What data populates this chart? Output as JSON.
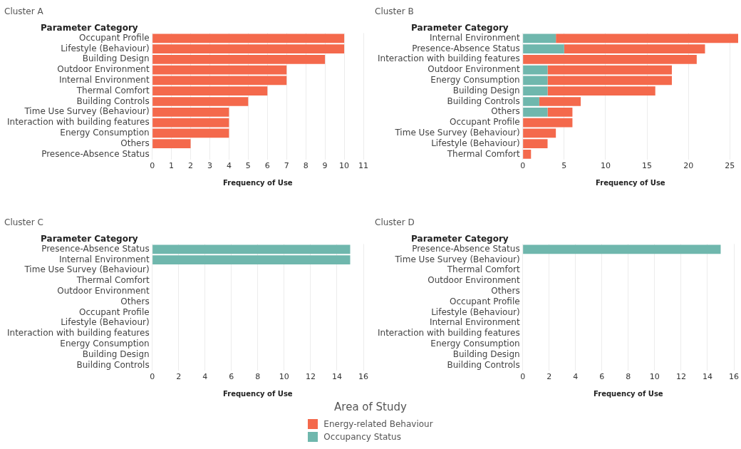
{
  "chart_data": [
    {
      "type": "bar",
      "title": "Cluster A",
      "ylabel": "Parameter Category",
      "xlabel": "Frequency of Use",
      "orientation": "horizontal",
      "stacked": true,
      "grid": "x",
      "categories": [
        "Occupant Profile",
        "Lifestyle (Behaviour)",
        "Building Design",
        "Outdoor Environment",
        "Internal Environment",
        "Thermal Comfort",
        "Building Controls",
        "Time Use Survey (Behaviour)",
        "Interaction with building features",
        "Energy Consumption",
        "Others",
        "Presence-Absence Status"
      ],
      "series": [
        {
          "name": "Energy-related Behaviour",
          "color": "#f4694c",
          "values": [
            10,
            10,
            9,
            7,
            7,
            6,
            5,
            4,
            4,
            4,
            2,
            0
          ]
        }
      ],
      "xlim": [
        0,
        11
      ],
      "xticks": [
        0,
        1,
        2,
        3,
        4,
        5,
        6,
        7,
        8,
        9,
        10,
        11
      ]
    },
    {
      "type": "bar",
      "title": "Cluster B",
      "ylabel": "Parameter Category",
      "xlabel": "Frequency of Use",
      "orientation": "horizontal",
      "stacked": true,
      "grid": "x",
      "legend": "bottom",
      "legend_title": "Area of Study",
      "categories": [
        "Internal Environment",
        "Presence-Absence Status",
        "Interaction with building features",
        "Outdoor Environment",
        "Energy Consumption",
        "Building Design",
        "Building Controls",
        "Others",
        "Occupant Profile",
        "Time Use Survey (Behaviour)",
        "Lifestyle (Behaviour)",
        "Thermal Comfort"
      ],
      "series": [
        {
          "name": "Occupancy Status",
          "color": "#6fb7ad",
          "values": [
            4,
            5,
            0,
            3,
            3,
            3,
            2,
            3,
            0,
            0,
            0,
            0
          ]
        },
        {
          "name": "Energy-related Behaviour",
          "color": "#f4694c",
          "values": [
            22,
            17,
            21,
            15,
            15,
            13,
            5,
            3,
            6,
            4,
            3,
            1
          ]
        }
      ],
      "xlim": [
        0,
        26
      ],
      "xticks": [
        0,
        5,
        10,
        15,
        20,
        25
      ]
    },
    {
      "type": "bar",
      "title": "Cluster C",
      "ylabel": "Parameter Category",
      "xlabel": "Frequency of Use",
      "orientation": "horizontal",
      "stacked": true,
      "grid": "x",
      "categories": [
        "Presence-Absence Status",
        "Internal Environment",
        "Time Use Survey (Behaviour)",
        "Thermal Comfort",
        "Outdoor Environment",
        "Others",
        "Occupant Profile",
        "Lifestyle (Behaviour)",
        "Interaction with building features",
        "Energy Consumption",
        "Building Design",
        "Building Controls"
      ],
      "series": [
        {
          "name": "Occupancy Status",
          "color": "#6fb7ad",
          "values": [
            15,
            15,
            0,
            0,
            0,
            0,
            0,
            0,
            0,
            0,
            0,
            0
          ]
        }
      ],
      "xlim": [
        0,
        16
      ],
      "xticks": [
        0,
        2,
        4,
        6,
        8,
        10,
        12,
        14,
        16
      ]
    },
    {
      "type": "bar",
      "title": "Cluster D",
      "ylabel": "Parameter Category",
      "xlabel": "Frequency of Use",
      "orientation": "horizontal",
      "stacked": true,
      "grid": "x",
      "categories": [
        "Presence-Absence Status",
        "Time Use Survey (Behaviour)",
        "Thermal Comfort",
        "Outdoor Environment",
        "Others",
        "Occupant Profile",
        "Lifestyle (Behaviour)",
        "Internal Environment",
        "Interaction with building features",
        "Energy Consumption",
        "Building Design",
        "Building Controls"
      ],
      "series": [
        {
          "name": "Occupancy Status",
          "color": "#6fb7ad",
          "values": [
            15,
            0,
            0,
            0,
            0,
            0,
            0,
            0,
            0,
            0,
            0,
            0
          ]
        }
      ],
      "xlim": [
        0,
        16
      ],
      "xticks": [
        0,
        2,
        4,
        6,
        8,
        10,
        12,
        14,
        16
      ]
    }
  ]
}
